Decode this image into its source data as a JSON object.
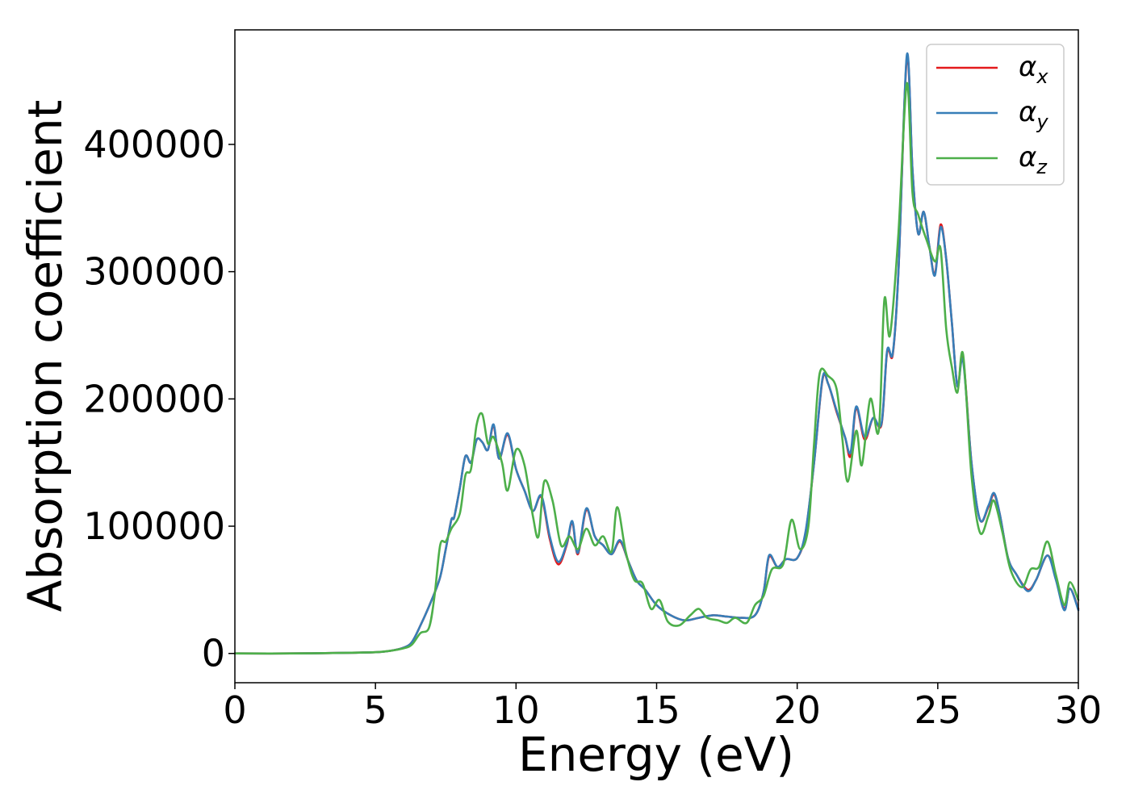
{
  "chart_data": {
    "type": "line",
    "title": "",
    "xlabel": "Energy (eV)",
    "ylabel": "Absorption coefficient",
    "xlim": [
      0,
      30
    ],
    "ylim": [
      -23000,
      490000
    ],
    "xticks": [
      0,
      5,
      10,
      15,
      20,
      25,
      30
    ],
    "yticks": [
      0,
      100000,
      200000,
      300000,
      400000
    ],
    "grid": false,
    "legend_position": "top-right",
    "series": [
      {
        "name": "α_x",
        "label_main": "α",
        "label_sub": "x",
        "color": "#e41a1c",
        "points": [
          [
            0,
            0
          ],
          [
            2,
            0
          ],
          [
            4,
            500
          ],
          [
            5,
            1000
          ],
          [
            5.5,
            2000
          ],
          [
            6,
            4500
          ],
          [
            6.3,
            9000
          ],
          [
            6.6,
            22000
          ],
          [
            7,
            42000
          ],
          [
            7.3,
            60000
          ],
          [
            7.5,
            82000
          ],
          [
            7.7,
            105000
          ],
          [
            7.8,
            107000
          ],
          [
            8,
            130000
          ],
          [
            8.2,
            155000
          ],
          [
            8.4,
            150000
          ],
          [
            8.6,
            168000
          ],
          [
            8.8,
            166000
          ],
          [
            9,
            160000
          ],
          [
            9.2,
            179000
          ],
          [
            9.4,
            153000
          ],
          [
            9.7,
            172000
          ],
          [
            10,
            145000
          ],
          [
            10.3,
            128000
          ],
          [
            10.6,
            112000
          ],
          [
            10.9,
            123000
          ],
          [
            11.2,
            90000
          ],
          [
            11.5,
            70000
          ],
          [
            11.8,
            85000
          ],
          [
            12,
            103000
          ],
          [
            12.2,
            78000
          ],
          [
            12.5,
            113000
          ],
          [
            12.8,
            92000
          ],
          [
            13.1,
            85000
          ],
          [
            13.4,
            78000
          ],
          [
            13.7,
            88000
          ],
          [
            14,
            72000
          ],
          [
            14.3,
            57000
          ],
          [
            14.6,
            50000
          ],
          [
            15,
            38000
          ],
          [
            15.5,
            30000
          ],
          [
            16,
            26000
          ],
          [
            16.5,
            28000
          ],
          [
            17,
            30000
          ],
          [
            17.5,
            29000
          ],
          [
            18,
            28000
          ],
          [
            18.5,
            30000
          ],
          [
            18.8,
            48000
          ],
          [
            19,
            76000
          ],
          [
            19.3,
            68000
          ],
          [
            19.6,
            74000
          ],
          [
            20,
            75000
          ],
          [
            20.3,
            95000
          ],
          [
            20.6,
            150000
          ],
          [
            20.9,
            215000
          ],
          [
            21.1,
            212000
          ],
          [
            21.4,
            190000
          ],
          [
            21.7,
            170000
          ],
          [
            21.9,
            155000
          ],
          [
            22.1,
            193000
          ],
          [
            22.4,
            168000
          ],
          [
            22.7,
            185000
          ],
          [
            23,
            180000
          ],
          [
            23.2,
            237000
          ],
          [
            23.4,
            235000
          ],
          [
            23.6,
            300000
          ],
          [
            23.9,
            468000
          ],
          [
            24.1,
            380000
          ],
          [
            24.3,
            330000
          ],
          [
            24.5,
            347000
          ],
          [
            24.7,
            320000
          ],
          [
            24.9,
            298000
          ],
          [
            25.1,
            337000
          ],
          [
            25.3,
            310000
          ],
          [
            25.5,
            260000
          ],
          [
            25.7,
            210000
          ],
          [
            25.9,
            232000
          ],
          [
            26.2,
            150000
          ],
          [
            26.5,
            105000
          ],
          [
            26.8,
            115000
          ],
          [
            27,
            125000
          ],
          [
            27.2,
            110000
          ],
          [
            27.5,
            75000
          ],
          [
            27.8,
            62000
          ],
          [
            28.2,
            50000
          ],
          [
            28.5,
            58000
          ],
          [
            28.9,
            77000
          ],
          [
            29.2,
            60000
          ],
          [
            29.5,
            35000
          ],
          [
            29.7,
            51000
          ],
          [
            30,
            35000
          ]
        ]
      },
      {
        "name": "α_y",
        "label_main": "α",
        "label_sub": "y",
        "color": "#377eb8",
        "points": [
          [
            0,
            0
          ],
          [
            2,
            0
          ],
          [
            4,
            500
          ],
          [
            5,
            1000
          ],
          [
            5.5,
            2000
          ],
          [
            6,
            4500
          ],
          [
            6.3,
            9000
          ],
          [
            6.6,
            22000
          ],
          [
            7,
            42000
          ],
          [
            7.3,
            60000
          ],
          [
            7.5,
            82000
          ],
          [
            7.7,
            105000
          ],
          [
            7.8,
            107000
          ],
          [
            8,
            130000
          ],
          [
            8.2,
            155000
          ],
          [
            8.4,
            150000
          ],
          [
            8.6,
            168000
          ],
          [
            8.8,
            166000
          ],
          [
            9,
            160000
          ],
          [
            9.2,
            180000
          ],
          [
            9.4,
            153000
          ],
          [
            9.7,
            173000
          ],
          [
            10,
            145000
          ],
          [
            10.3,
            128000
          ],
          [
            10.6,
            112000
          ],
          [
            10.9,
            124000
          ],
          [
            11.2,
            92000
          ],
          [
            11.5,
            72000
          ],
          [
            11.8,
            86000
          ],
          [
            12,
            104000
          ],
          [
            12.2,
            79000
          ],
          [
            12.5,
            114000
          ],
          [
            12.8,
            92000
          ],
          [
            13.1,
            85000
          ],
          [
            13.4,
            78000
          ],
          [
            13.7,
            89000
          ],
          [
            14,
            72000
          ],
          [
            14.3,
            57000
          ],
          [
            14.6,
            50000
          ],
          [
            15,
            38000
          ],
          [
            15.5,
            30000
          ],
          [
            16,
            26000
          ],
          [
            16.5,
            28000
          ],
          [
            17,
            30000
          ],
          [
            17.5,
            29000
          ],
          [
            18,
            28000
          ],
          [
            18.5,
            30000
          ],
          [
            18.8,
            48000
          ],
          [
            19,
            77000
          ],
          [
            19.3,
            68000
          ],
          [
            19.6,
            74000
          ],
          [
            20,
            75000
          ],
          [
            20.3,
            96000
          ],
          [
            20.6,
            150000
          ],
          [
            20.9,
            216000
          ],
          [
            21.1,
            212000
          ],
          [
            21.4,
            191000
          ],
          [
            21.7,
            170000
          ],
          [
            21.9,
            158000
          ],
          [
            22.1,
            194000
          ],
          [
            22.4,
            170000
          ],
          [
            22.7,
            185000
          ],
          [
            23,
            181000
          ],
          [
            23.2,
            238000
          ],
          [
            23.4,
            236000
          ],
          [
            23.6,
            300000
          ],
          [
            23.9,
            470000
          ],
          [
            24.1,
            380000
          ],
          [
            24.3,
            330000
          ],
          [
            24.5,
            347000
          ],
          [
            24.7,
            320000
          ],
          [
            24.9,
            297000
          ],
          [
            25.1,
            335000
          ],
          [
            25.3,
            310000
          ],
          [
            25.5,
            260000
          ],
          [
            25.7,
            210000
          ],
          [
            25.9,
            230000
          ],
          [
            26.2,
            150000
          ],
          [
            26.5,
            105000
          ],
          [
            26.8,
            116000
          ],
          [
            27,
            126000
          ],
          [
            27.2,
            110000
          ],
          [
            27.5,
            75000
          ],
          [
            27.8,
            62000
          ],
          [
            28.2,
            49000
          ],
          [
            28.5,
            58000
          ],
          [
            28.9,
            77000
          ],
          [
            29.2,
            58000
          ],
          [
            29.5,
            34000
          ],
          [
            29.7,
            51000
          ],
          [
            30,
            34000
          ]
        ]
      },
      {
        "name": "α_z",
        "label_main": "α",
        "label_sub": "z",
        "color": "#4daf4a",
        "points": [
          [
            0,
            0
          ],
          [
            2,
            0
          ],
          [
            4,
            500
          ],
          [
            5,
            1000
          ],
          [
            5.5,
            2000
          ],
          [
            6,
            4000
          ],
          [
            6.3,
            7000
          ],
          [
            6.6,
            16000
          ],
          [
            6.9,
            20000
          ],
          [
            7.1,
            45000
          ],
          [
            7.3,
            85000
          ],
          [
            7.5,
            88000
          ],
          [
            7.7,
            98000
          ],
          [
            8,
            110000
          ],
          [
            8.2,
            140000
          ],
          [
            8.4,
            145000
          ],
          [
            8.6,
            180000
          ],
          [
            8.8,
            188000
          ],
          [
            9,
            165000
          ],
          [
            9.2,
            170000
          ],
          [
            9.5,
            150000
          ],
          [
            9.7,
            128000
          ],
          [
            10,
            160000
          ],
          [
            10.3,
            148000
          ],
          [
            10.6,
            108000
          ],
          [
            10.8,
            92000
          ],
          [
            11,
            135000
          ],
          [
            11.3,
            120000
          ],
          [
            11.6,
            85000
          ],
          [
            11.9,
            92000
          ],
          [
            12.2,
            82000
          ],
          [
            12.5,
            98000
          ],
          [
            12.8,
            85000
          ],
          [
            13.1,
            92000
          ],
          [
            13.4,
            80000
          ],
          [
            13.6,
            115000
          ],
          [
            13.9,
            80000
          ],
          [
            14.2,
            58000
          ],
          [
            14.5,
            55000
          ],
          [
            14.8,
            35000
          ],
          [
            15.1,
            42000
          ],
          [
            15.4,
            25000
          ],
          [
            15.8,
            22000
          ],
          [
            16.2,
            30000
          ],
          [
            16.5,
            35000
          ],
          [
            16.8,
            28000
          ],
          [
            17.2,
            26000
          ],
          [
            17.5,
            24000
          ],
          [
            17.8,
            28000
          ],
          [
            18.2,
            24000
          ],
          [
            18.5,
            38000
          ],
          [
            18.8,
            45000
          ],
          [
            19.1,
            66000
          ],
          [
            19.5,
            70000
          ],
          [
            19.8,
            105000
          ],
          [
            20.1,
            82000
          ],
          [
            20.4,
            100000
          ],
          [
            20.6,
            165000
          ],
          [
            20.8,
            220000
          ],
          [
            21.1,
            218000
          ],
          [
            21.4,
            208000
          ],
          [
            21.6,
            170000
          ],
          [
            21.8,
            135000
          ],
          [
            22.1,
            175000
          ],
          [
            22.3,
            148000
          ],
          [
            22.6,
            200000
          ],
          [
            22.9,
            175000
          ],
          [
            23.1,
            278000
          ],
          [
            23.3,
            250000
          ],
          [
            23.6,
            330000
          ],
          [
            23.9,
            448000
          ],
          [
            24.1,
            362000
          ],
          [
            24.3,
            345000
          ],
          [
            24.6,
            325000
          ],
          [
            24.9,
            308000
          ],
          [
            25.1,
            318000
          ],
          [
            25.3,
            255000
          ],
          [
            25.5,
            225000
          ],
          [
            25.7,
            205000
          ],
          [
            25.9,
            235000
          ],
          [
            26.2,
            140000
          ],
          [
            26.5,
            95000
          ],
          [
            26.8,
            108000
          ],
          [
            27,
            120000
          ],
          [
            27.3,
            95000
          ],
          [
            27.6,
            65000
          ],
          [
            28,
            52000
          ],
          [
            28.3,
            66000
          ],
          [
            28.6,
            68000
          ],
          [
            28.9,
            88000
          ],
          [
            29.2,
            62000
          ],
          [
            29.5,
            38000
          ],
          [
            29.7,
            56000
          ],
          [
            30,
            42000
          ]
        ]
      }
    ]
  }
}
